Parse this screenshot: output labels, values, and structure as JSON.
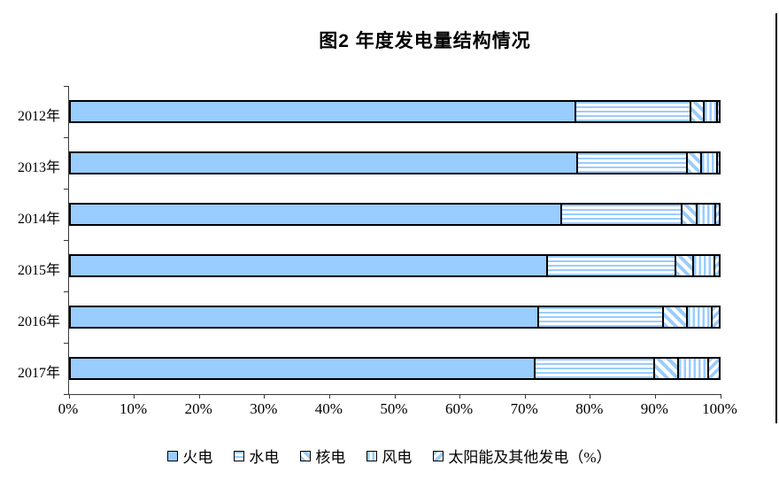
{
  "title": "图2  年度发电量结构情况",
  "colors": {
    "bar_fill": "#99CCFF",
    "bar_border": "#000000",
    "axis": "#3A3A3A",
    "background": "#FFFFFF"
  },
  "chart_data": {
    "type": "bar",
    "subtype": "horizontal-stacked-100pct",
    "title": "图2  年度发电量结构情况",
    "unit": "%",
    "xlim": [
      0,
      100
    ],
    "grid": false,
    "legend_position": "bottom",
    "categories": [
      "2012年",
      "2013年",
      "2014年",
      "2015年",
      "2016年",
      "2017年"
    ],
    "x_tick_labels": [
      "0%",
      "10%",
      "20%",
      "30%",
      "40%",
      "50%",
      "60%",
      "70%",
      "80%",
      "90%",
      "100%"
    ],
    "series": [
      {
        "name": "火电",
        "pattern": "solid",
        "values": [
          77.8,
          78.0,
          75.5,
          73.3,
          72.0,
          71.4
        ]
      },
      {
        "name": "水电",
        "pattern": "horizontal-stripes",
        "values": [
          17.7,
          17.0,
          18.6,
          19.9,
          19.3,
          18.5
        ]
      },
      {
        "name": "核电",
        "pattern": "diagonal-down-stripes",
        "values": [
          2.1,
          2.1,
          2.3,
          2.7,
          3.6,
          3.7
        ]
      },
      {
        "name": "风电",
        "pattern": "vertical-stripes",
        "values": [
          2.0,
          2.5,
          2.9,
          3.3,
          3.9,
          4.6
        ]
      },
      {
        "name": "太阳能及其他发电",
        "pattern": "diagonal-up-stripes",
        "values": [
          0.4,
          0.4,
          0.7,
          0.8,
          1.2,
          1.8
        ]
      }
    ]
  },
  "legend": {
    "items": [
      {
        "label": "火电",
        "pattern": "solid"
      },
      {
        "label": "水电",
        "pattern": "horizontal-stripes"
      },
      {
        "label": "核电",
        "pattern": "diagonal-down-stripes"
      },
      {
        "label": "风电",
        "pattern": "vertical-stripes"
      },
      {
        "label": "太阳能及其他发电（%）",
        "pattern": "diagonal-up-stripes"
      }
    ]
  }
}
